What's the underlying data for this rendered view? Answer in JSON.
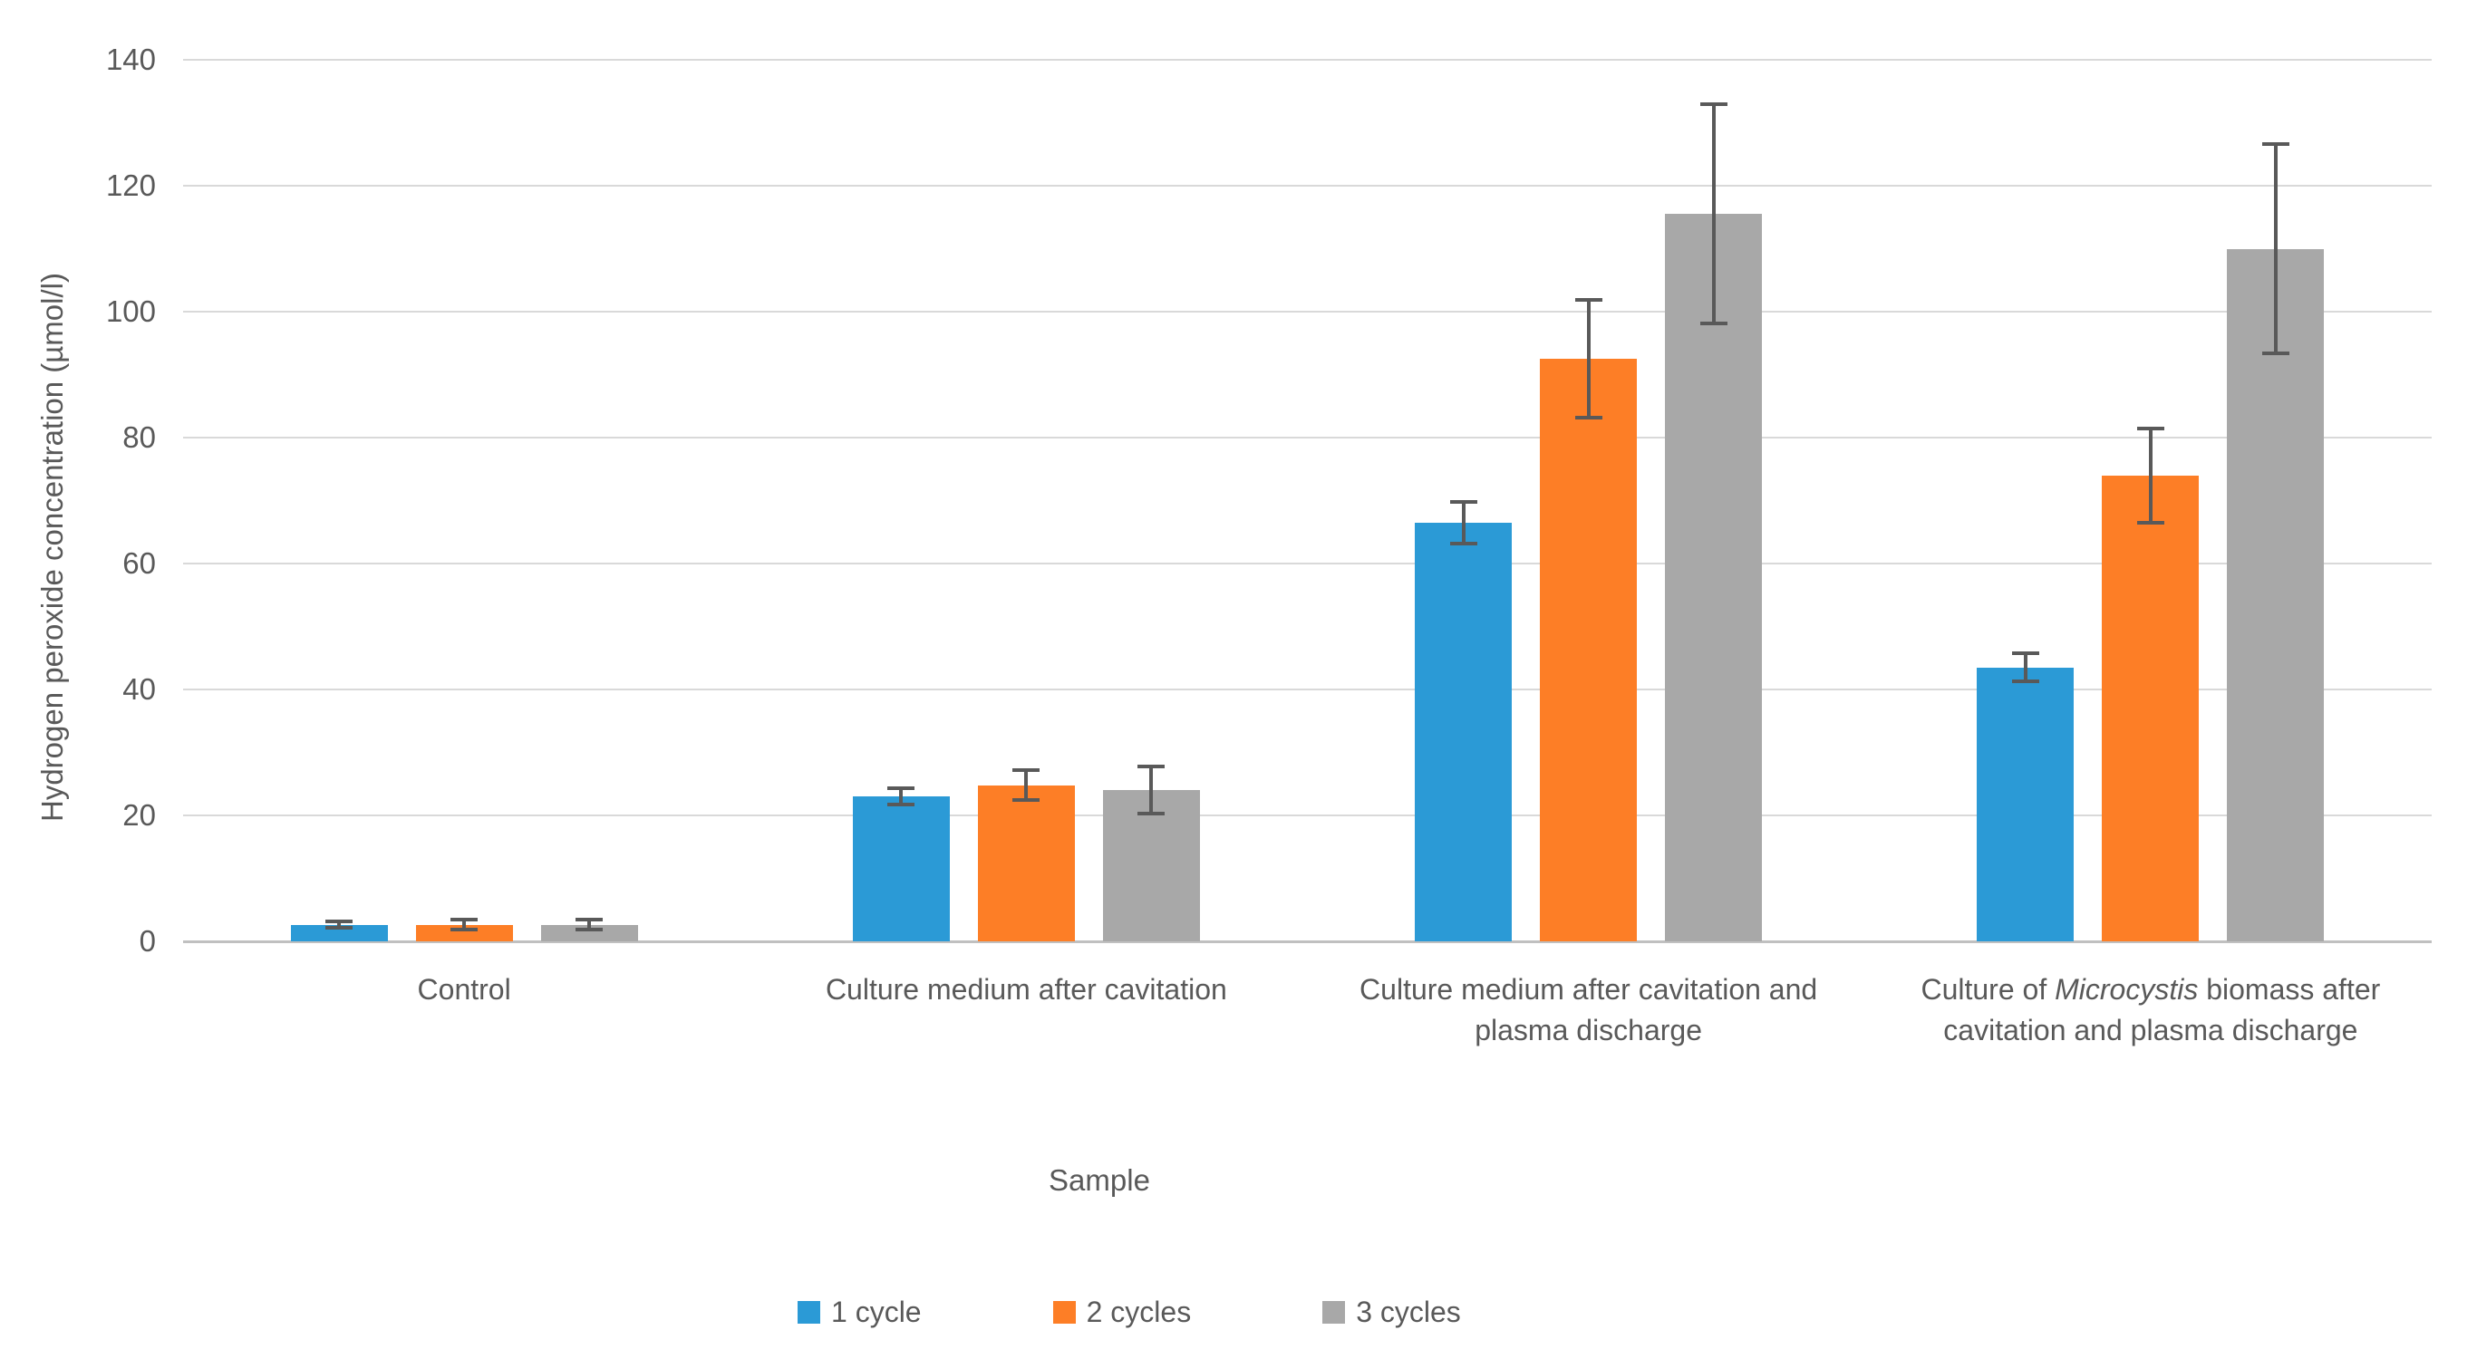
{
  "figure": {
    "background": "#ffffff",
    "text_color": "#595959"
  },
  "chart_data": {
    "type": "bar",
    "title": "",
    "xlabel": "Sample",
    "ylabel": "Hydrogen peroxide concentration (µmol/l)",
    "ylim": [
      0,
      140
    ],
    "yticks": [
      0,
      20,
      40,
      60,
      80,
      100,
      120,
      140
    ],
    "grid": true,
    "legend_position": "bottom-center",
    "gridline_color": "#D9D9D9",
    "baseline_color": "#C0C0C0",
    "error_bar_color": "#595959",
    "categories": [
      "Control",
      "Culture medium after cavitation",
      "Culture medium after cavitation and plasma discharge",
      "Culture of Microcystis biomass after cavitation and plasma discharge"
    ],
    "category_display": [
      {
        "lines": [
          [
            {
              "t": "Control"
            }
          ]
        ]
      },
      {
        "lines": [
          [
            {
              "t": "Culture medium after cavitation"
            }
          ]
        ]
      },
      {
        "lines": [
          [
            {
              "t": "Culture medium after cavitation and"
            }
          ],
          [
            {
              "t": "plasma discharge"
            }
          ]
        ]
      },
      {
        "lines": [
          [
            {
              "t": "Culture of "
            },
            {
              "t": "Microcystis",
              "italic": true
            },
            {
              "t": " biomass after"
            }
          ],
          [
            {
              "t": "cavitation and plasma discharge"
            }
          ]
        ]
      }
    ],
    "series": [
      {
        "name": "1 cycle",
        "color": "#2B9AD6",
        "values": [
          2.6,
          23.0,
          66.5,
          43.5
        ],
        "errors": [
          0.5,
          1.3,
          3.3,
          2.2
        ]
      },
      {
        "name": "2 cycles",
        "color": "#FD7E26",
        "values": [
          2.6,
          24.8,
          92.5,
          74.0
        ],
        "errors": [
          0.8,
          2.4,
          9.3,
          7.5
        ]
      },
      {
        "name": "3 cycles",
        "color": "#A8A8A8",
        "values": [
          2.6,
          24.0,
          115.5,
          110.0
        ],
        "errors": [
          0.8,
          3.7,
          17.4,
          16.6
        ]
      }
    ]
  }
}
